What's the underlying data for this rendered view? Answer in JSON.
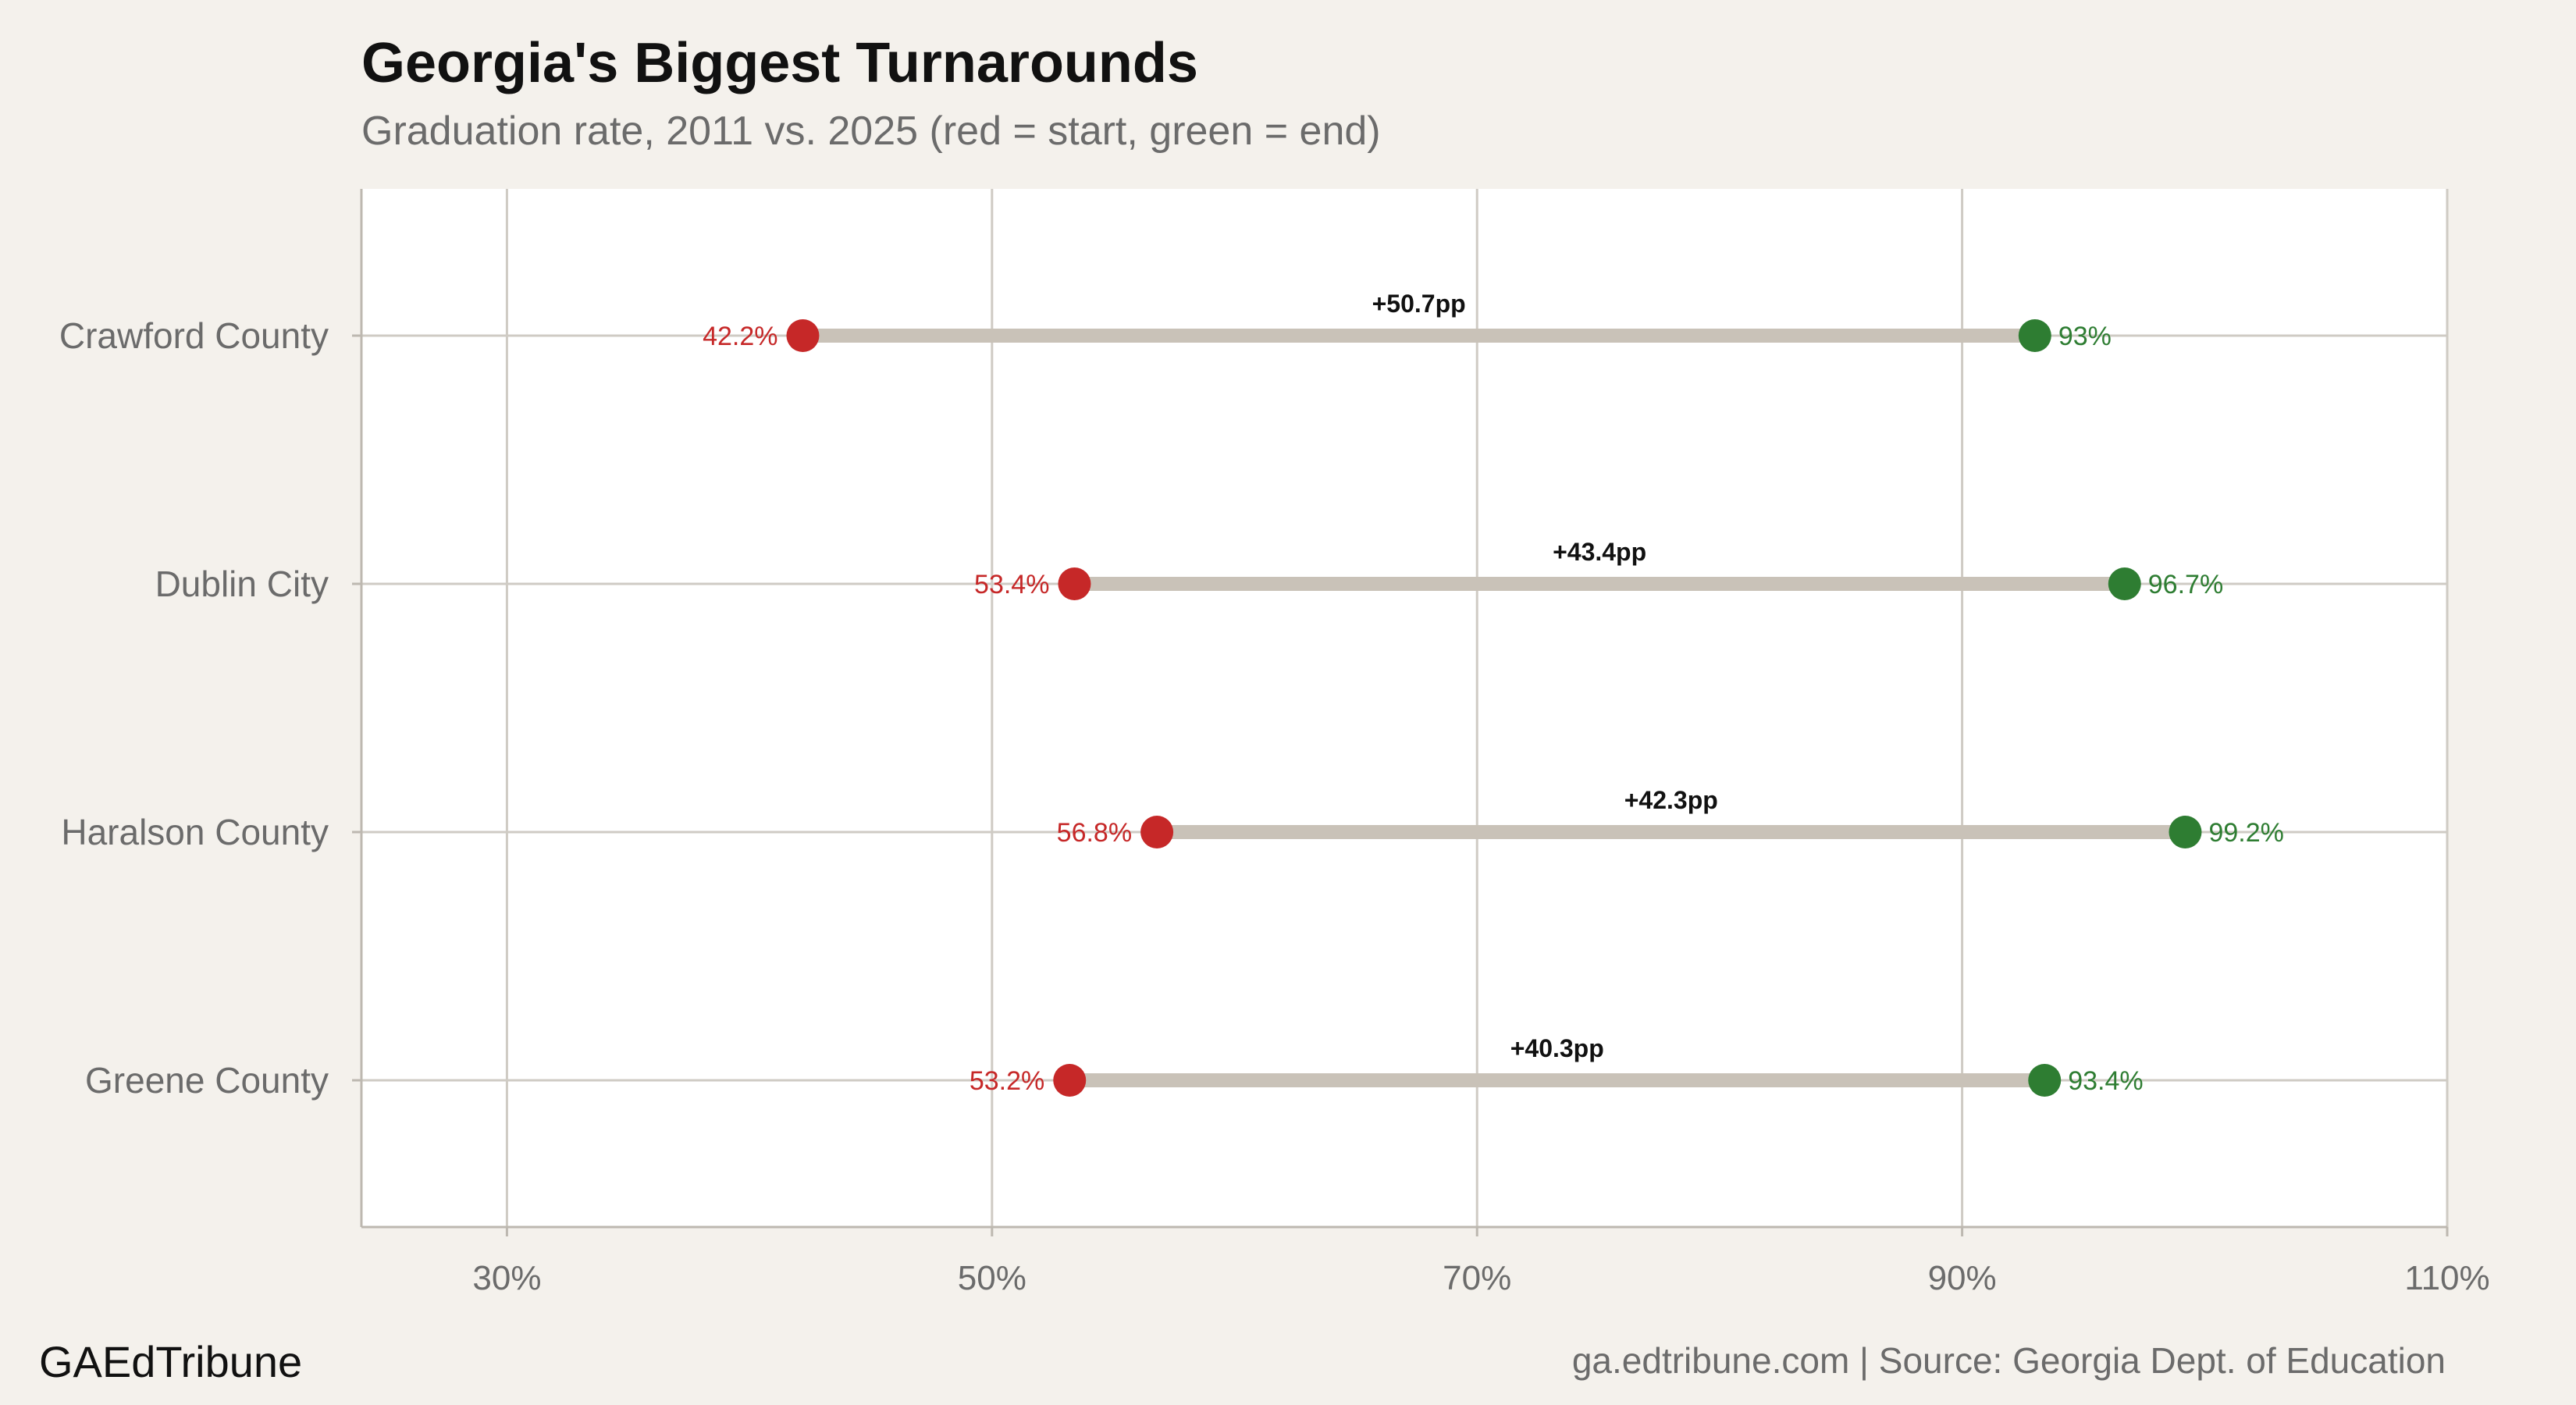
{
  "header": {
    "title": "Georgia's Biggest Turnarounds",
    "subtitle": "Graduation rate, 2011 vs. 2025 (red = start, green = end)"
  },
  "footer": {
    "brand": "GAEdTribune",
    "source": "ga.edtribune.com | Source: Georgia Dept. of Education"
  },
  "colors": {
    "start": "#c62828",
    "end": "#2e7d32",
    "connector": "#c9c2b8",
    "grid": "#cfcbc4",
    "panel": "#ffffff",
    "background": "#f4f1ec"
  },
  "chart_data": {
    "type": "dumbbell",
    "xlim": [
      24,
      110
    ],
    "xticks": [
      30,
      50,
      70,
      90,
      110
    ],
    "xtick_labels": [
      "30%",
      "50%",
      "70%",
      "90%",
      "110%"
    ],
    "categories": [
      "Crawford County",
      "Dublin City",
      "Haralson County",
      "Greene County"
    ],
    "series": [
      {
        "name": "2011",
        "values": [
          42.2,
          53.4,
          56.8,
          53.2
        ]
      },
      {
        "name": "2025",
        "values": [
          93.0,
          96.7,
          99.2,
          93.4
        ]
      }
    ],
    "start_labels": [
      "42.2%",
      "53.4%",
      "56.8%",
      "53.2%"
    ],
    "end_labels": [
      "93%",
      "96.7%",
      "99.2%",
      "93.4%"
    ],
    "change_labels": [
      "+50.7pp",
      "+43.4pp",
      "+42.3pp",
      "+40.3pp"
    ],
    "grid": true,
    "legend": "none"
  }
}
